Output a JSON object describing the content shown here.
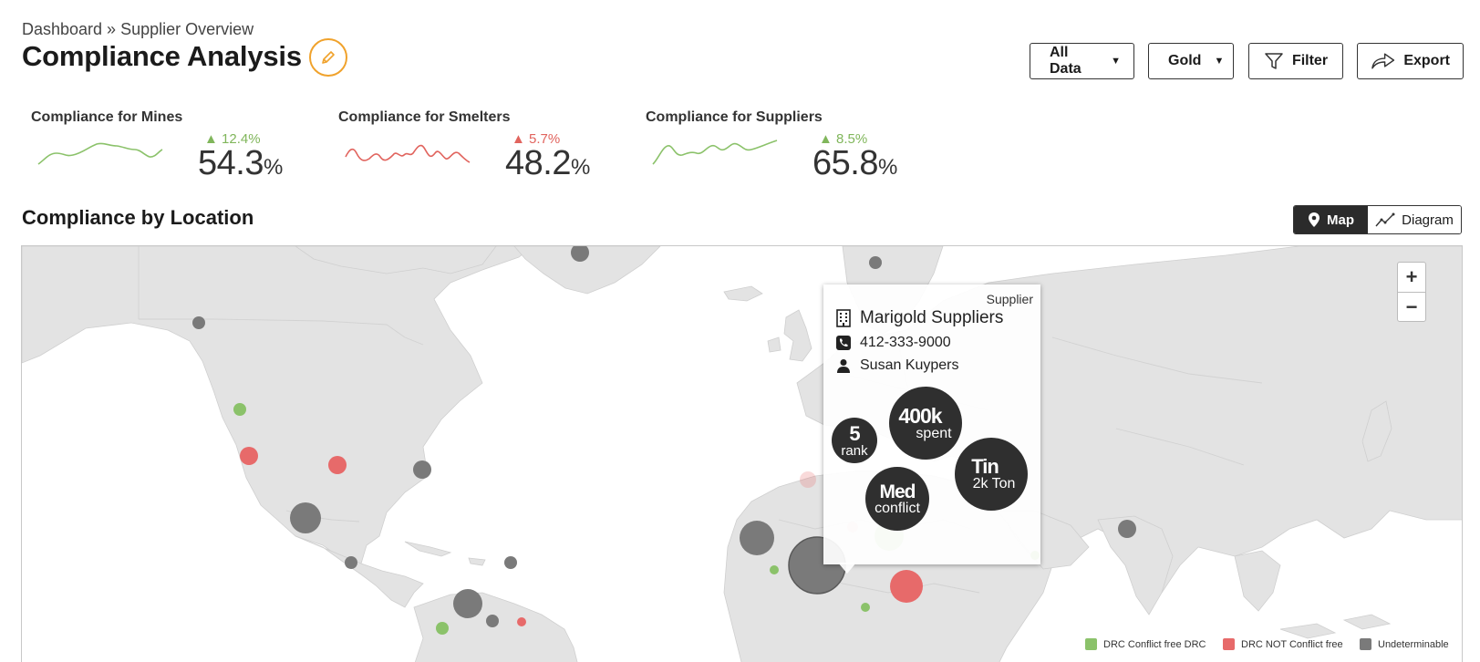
{
  "header": {
    "breadcrumb": "Dashboard » Supplier Overview",
    "title": "Compliance Analysis"
  },
  "toolbar": {
    "data_filter": "All Data",
    "metal_filter": "Gold",
    "filter_label": "Filter",
    "export_label": "Export"
  },
  "kpis": [
    {
      "title": "Compliance for Mines",
      "delta": "12.4%",
      "value": "54.3",
      "unit": "%",
      "trend": "up",
      "color": "#80b65b"
    },
    {
      "title": "Compliance for Smelters",
      "delta": "5.7%",
      "value": "48.2",
      "unit": "%",
      "trend": "up",
      "color": "#e1645e"
    },
    {
      "title": "Compliance for Suppliers",
      "delta": "8.5%",
      "value": "65.8",
      "unit": "%",
      "trend": "up",
      "color": "#80b65b"
    }
  ],
  "location": {
    "title": "Compliance by Location",
    "view_map": "Map",
    "view_diagram": "Diagram",
    "active_view": "Map"
  },
  "zoom": {
    "in": "+",
    "out": "−"
  },
  "popup": {
    "type": "Supplier",
    "name": "Marigold Suppliers",
    "phone": "412-333-9000",
    "contact": "Susan Kuypers",
    "rank_value": "5",
    "rank_label": "rank",
    "spent_value": "400k",
    "spent_label": "spent",
    "risk_value": "Med",
    "risk_label": "conflict",
    "metal_value": "Tin",
    "metal_label": "2k Ton"
  },
  "legend": [
    {
      "label": "DRC Conflict free DRC",
      "color": "#8bc26a"
    },
    {
      "label": "DRC NOT Conflict free",
      "color": "#e76a6a"
    },
    {
      "label": "Undeterminable",
      "color": "#7a7a7a"
    }
  ],
  "colors": {
    "accent": "#f0a22c",
    "land": "#e3e3e3",
    "green": "#8bc26a",
    "red": "#e76a6a",
    "gray": "#7a7a7a"
  }
}
